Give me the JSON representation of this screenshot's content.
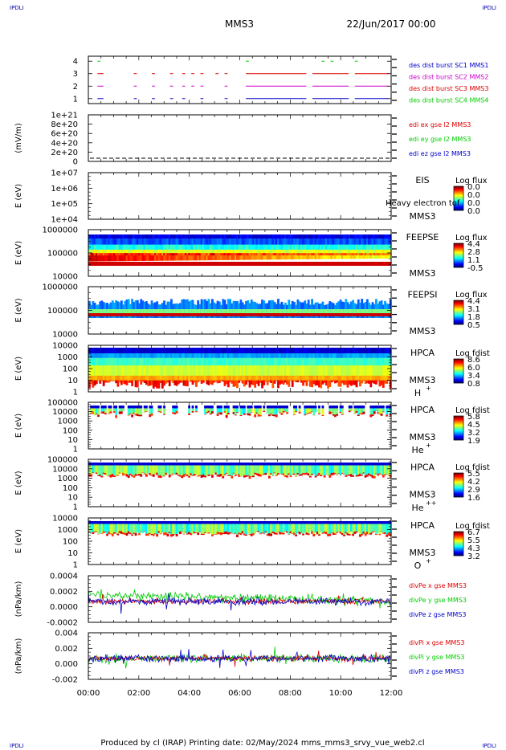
{
  "corner_label": "IPDLI",
  "header": {
    "mission": "MMS3",
    "datetime": "22/Jun/2017 00:00"
  },
  "footer": "Produced by cl (IRAP)   Printing date: 02/May/2024   mms_mms3_srvy_vue_web2.cl",
  "time_ticks": [
    "00:00",
    "02:00",
    "04:00",
    "06:00",
    "08:00",
    "10:00",
    "12:00"
  ],
  "chart_data": [
    {
      "type": "scatter",
      "name": "burst availability",
      "ylabel": "",
      "yticks": [
        "1",
        "2",
        "3",
        "4"
      ],
      "ylim": [
        0.6,
        4.4
      ],
      "legend": [
        {
          "text": "des dist burst SC1 MMS1",
          "color": "#0000cc"
        },
        {
          "text": "des dist burst SC2 MMS2",
          "color": "#cc00cc"
        },
        {
          "text": "des dist burst SC3 MMS3",
          "color": "#dd0000"
        },
        {
          "text": "des dist burst SC4 MMS4",
          "color": "#00cc00"
        }
      ]
    },
    {
      "type": "line",
      "ylabel": "(mV/m)",
      "yticks": [
        "1e+21",
        "8e+20",
        "6e+20",
        "4e+20",
        "2e+20",
        "0"
      ],
      "legend": [
        {
          "text": "edi ex gse l2 MMS3",
          "color": "#dd0000"
        },
        {
          "text": "edi ey gse l2 MMS3",
          "color": "#00cc00"
        },
        {
          "text": "edi ez gse l2 MMS3",
          "color": "#0000cc"
        }
      ]
    },
    {
      "type": "heatmap",
      "ylabel": "E (eV)",
      "yticks": [
        "1e+07",
        "1e+06",
        "1e+05",
        "1e+04"
      ],
      "instrument": [
        "EIS",
        "MMS3"
      ],
      "overlay": "Heavy electron tof",
      "colorbar": {
        "title": "Log flux",
        "ticks": [
          "0.0",
          "0.0",
          "0.0",
          "0.0"
        ]
      }
    },
    {
      "type": "heatmap",
      "ylabel": "E (eV)",
      "yticks": [
        "1000000",
        "100000",
        "10000"
      ],
      "instrument": [
        "FEEPSE",
        "MMS3"
      ],
      "colorbar": {
        "title": "Log flux",
        "ticks": [
          "4.4",
          "2.8",
          "1.1",
          "-0.5"
        ]
      }
    },
    {
      "type": "heatmap",
      "ylabel": "E (eV)",
      "yticks": [
        "1000000",
        "100000",
        "10000"
      ],
      "instrument": [
        "FEEPSI",
        "MMS3"
      ],
      "colorbar": {
        "title": "Log flux",
        "ticks": [
          "4.4",
          "3.1",
          "1.8",
          "0.5"
        ]
      }
    },
    {
      "type": "heatmap",
      "ylabel": "E (eV)",
      "yticks": [
        "10000",
        "1000",
        "100",
        "10",
        "1"
      ],
      "instrument": [
        "HPCA",
        "MMS3"
      ],
      "species": "H",
      "charge": "+",
      "colorbar": {
        "title": "Log fdist",
        "ticks": [
          "8.6",
          "6.0",
          "3.4",
          "0.8"
        ]
      }
    },
    {
      "type": "heatmap",
      "ylabel": "E (eV)",
      "yticks": [
        "100000",
        "10000",
        "1000",
        "100",
        "10",
        "1"
      ],
      "instrument": [
        "HPCA",
        "MMS3"
      ],
      "species": "He",
      "charge": "+",
      "colorbar": {
        "title": "Log fdist",
        "ticks": [
          "5.8",
          "4.5",
          "3.2",
          "1.9"
        ]
      }
    },
    {
      "type": "heatmap",
      "ylabel": "E (eV)",
      "yticks": [
        "100000",
        "10000",
        "1000",
        "100",
        "10",
        "1"
      ],
      "instrument": [
        "HPCA",
        "MMS3"
      ],
      "species": "He",
      "charge": "++",
      "colorbar": {
        "title": "Log fdist",
        "ticks": [
          "5.5",
          "4.2",
          "2.9",
          "1.6"
        ]
      }
    },
    {
      "type": "heatmap",
      "ylabel": "E (eV)",
      "yticks": [
        "10000",
        "1000",
        "100",
        "10",
        "1"
      ],
      "instrument": [
        "HPCA",
        "MMS3"
      ],
      "species": "O",
      "charge": "+",
      "colorbar": {
        "title": "Log fdist",
        "ticks": [
          "6.7",
          "5.5",
          "4.3",
          "3.2"
        ]
      }
    },
    {
      "type": "line",
      "ylabel": "(nPa/km)",
      "yticks": [
        "0.0004",
        "0.0002",
        "0.0000",
        "-0.0002"
      ],
      "legend": [
        {
          "text": "divPe x gse MMS3",
          "color": "#dd0000"
        },
        {
          "text": "divPe y gse MMS3",
          "color": "#00cc00"
        },
        {
          "text": "divPe z gse MMS3",
          "color": "#0000cc"
        }
      ]
    },
    {
      "type": "line",
      "ylabel": "(nPa/km)",
      "yticks": [
        "0.004",
        "0.002",
        "0.000",
        "-0.002"
      ],
      "legend": [
        {
          "text": "divPi x gse MMS3",
          "color": "#dd0000"
        },
        {
          "text": "divPi y gse MMS3",
          "color": "#00cc00"
        },
        {
          "text": "divPi z gse MMS3",
          "color": "#0000cc"
        }
      ]
    }
  ]
}
